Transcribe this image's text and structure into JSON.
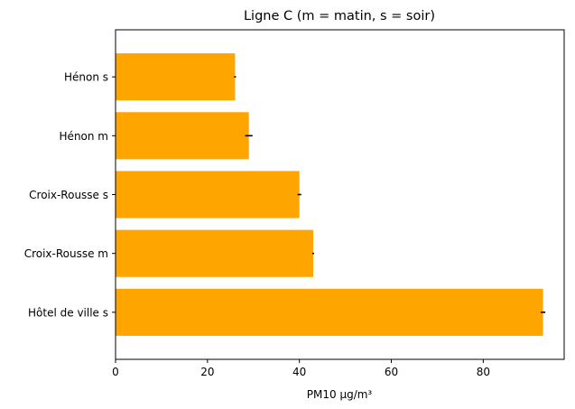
{
  "chart_data": {
    "type": "bar",
    "orientation": "horizontal",
    "title": "Ligne C (m = matin, s = soir)",
    "xlabel": "PM10 µg/m³",
    "ylabel": "",
    "categories": [
      "Hôtel de ville s",
      "Croix-Rousse m",
      "Croix-Rousse s",
      "Hénon m",
      "Hénon s"
    ],
    "values": [
      93,
      43,
      40,
      29,
      26
    ],
    "errors": [
      0.5,
      0.2,
      0.4,
      0.8,
      0.2
    ],
    "xlim": [
      0,
      97.6
    ],
    "xticks": [
      0,
      20,
      40,
      60,
      80
    ],
    "bar_color": "#ffa500",
    "error_color": "#000000",
    "grid": false,
    "legend": "none"
  }
}
